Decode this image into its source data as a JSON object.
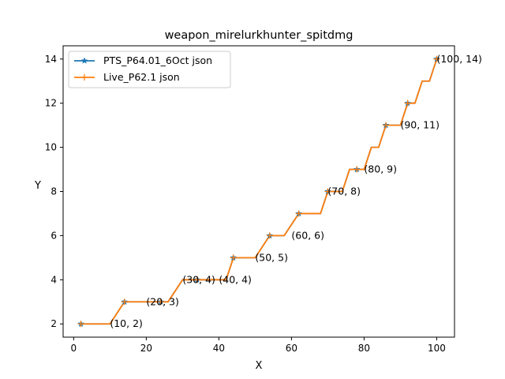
{
  "chart_data": {
    "type": "line",
    "title": "weapon_mirelurkhunter_spitdmg",
    "xlabel": "X",
    "ylabel": "Y",
    "xlim": [
      -2.9,
      104.9
    ],
    "ylim": [
      1.4,
      14.6
    ],
    "xticks": [
      0,
      20,
      40,
      60,
      80,
      100
    ],
    "yticks": [
      2,
      4,
      6,
      8,
      10,
      12,
      14
    ],
    "grid": false,
    "legend_position": "top-left",
    "x": [
      2,
      10,
      14,
      26,
      30,
      42,
      44,
      50,
      54,
      58,
      62,
      68,
      70,
      74,
      76,
      80,
      82,
      84,
      86,
      90,
      92,
      94,
      96,
      98,
      100
    ],
    "series": [
      {
        "name": "PTS_P64.01_6Oct json",
        "color": "#1f77b4",
        "marker": "star",
        "values": [
          2,
          2,
          3,
          3,
          4,
          4,
          5,
          5,
          6,
          6,
          7,
          7,
          8,
          8,
          9,
          9,
          10,
          10,
          11,
          11,
          12,
          12,
          13,
          13,
          14
        ],
        "marker_x": [
          2,
          14,
          24,
          34,
          44,
          54,
          62,
          70,
          78,
          86,
          92,
          100
        ],
        "marker_y": [
          2,
          3,
          3,
          4,
          5,
          6,
          7,
          8,
          9,
          11,
          12,
          14
        ]
      },
      {
        "name": "Live_P62.1 json",
        "color": "#ff7f0e",
        "marker": "plus",
        "values": [
          2,
          2,
          3,
          3,
          4,
          4,
          5,
          5,
          6,
          6,
          7,
          7,
          8,
          8,
          9,
          9,
          10,
          10,
          11,
          11,
          12,
          12,
          13,
          13,
          14
        ],
        "marker_x": [
          2,
          14,
          24,
          34,
          44,
          54,
          62,
          70,
          78,
          86,
          92,
          100
        ],
        "marker_y": [
          2,
          3,
          3,
          4,
          5,
          6,
          7,
          8,
          9,
          11,
          12,
          14
        ]
      }
    ],
    "annotations": [
      {
        "x": 10,
        "y": 2,
        "text": "(10, 2)"
      },
      {
        "x": 20,
        "y": 3,
        "text": "(20, 3)"
      },
      {
        "x": 30,
        "y": 4,
        "text": "(30, 4)"
      },
      {
        "x": 40,
        "y": 4,
        "text": "(40, 4)"
      },
      {
        "x": 50,
        "y": 5,
        "text": "(50, 5)"
      },
      {
        "x": 60,
        "y": 6,
        "text": "(60, 6)"
      },
      {
        "x": 70,
        "y": 8,
        "text": "(70, 8)"
      },
      {
        "x": 80,
        "y": 9,
        "text": "(80, 9)"
      },
      {
        "x": 90,
        "y": 11,
        "text": "(90, 11)"
      },
      {
        "x": 100,
        "y": 14,
        "text": "(100, 14)"
      }
    ]
  }
}
